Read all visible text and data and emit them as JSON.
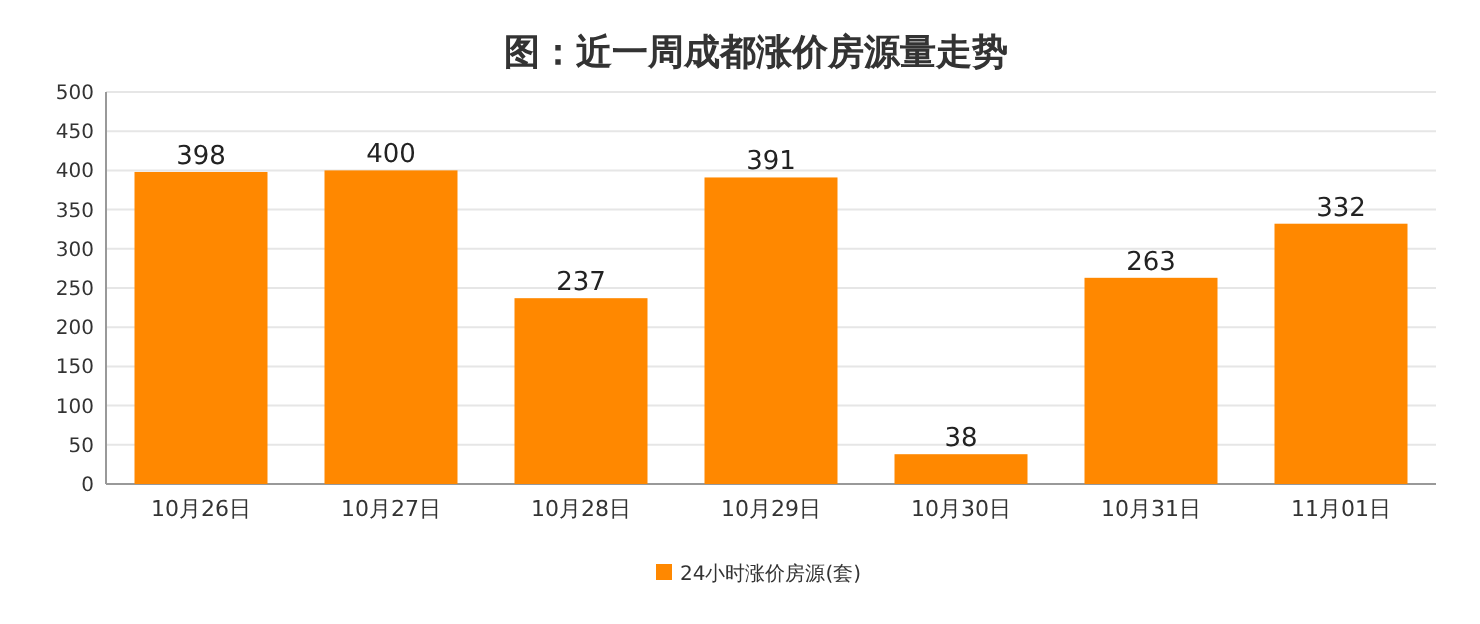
{
  "chart_data": {
    "type": "bar",
    "title": "图：近一周成都涨价房源量走势",
    "categories": [
      "10月26日",
      "10月27日",
      "10月28日",
      "10月29日",
      "10月30日",
      "10月31日",
      "11月01日"
    ],
    "series": [
      {
        "name": "24小时涨价房源(套)",
        "color": "#ff8800",
        "values": [
          398,
          400,
          237,
          391,
          38,
          263,
          332
        ]
      }
    ],
    "ylim": [
      0,
      500
    ],
    "yticks": [
      0,
      50,
      100,
      150,
      200,
      250,
      300,
      350,
      400,
      450,
      500
    ],
    "grid": "y",
    "legend": "bottom",
    "data_labels": true
  }
}
